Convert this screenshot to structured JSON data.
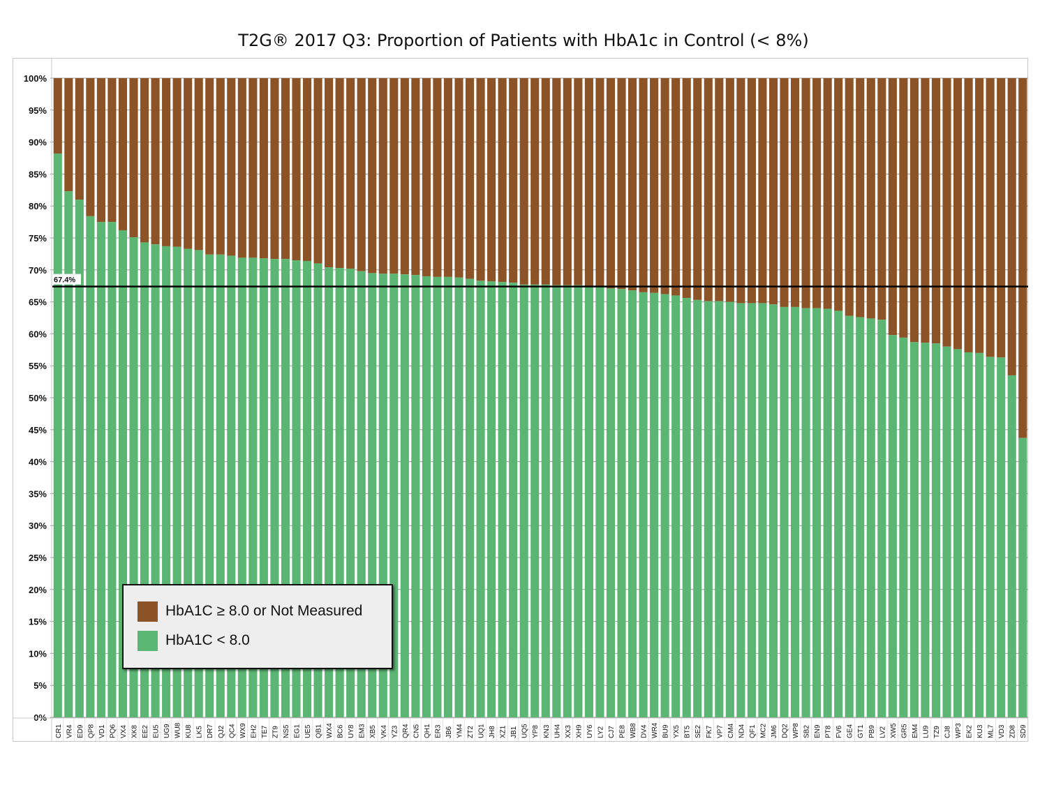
{
  "chart_data": {
    "type": "bar",
    "stacked": true,
    "title": "T2G® 2017 Q3: Proportion of Patients with HbA1c in Control (< 8%)",
    "xlabel": "",
    "ylabel": "",
    "ylim": [
      0,
      100
    ],
    "y_ticks": [
      "0%",
      "5%",
      "10%",
      "15%",
      "20%",
      "25%",
      "30%",
      "35%",
      "40%",
      "45%",
      "50%",
      "55%",
      "60%",
      "65%",
      "70%",
      "75%",
      "80%",
      "85%",
      "90%",
      "95%",
      "100%"
    ],
    "grid": true,
    "legend_position": "bottom-left",
    "categories": [
      "CR1",
      "VR4",
      "ED9",
      "QP8",
      "VD1",
      "PQ6",
      "VX4",
      "XK8",
      "EE2",
      "EU5",
      "UG9",
      "WU8",
      "KU8",
      "LK5",
      "DR7",
      "QJ2",
      "QC4",
      "WX9",
      "EH2",
      "TE7",
      "ZT9",
      "NS5",
      "EG1",
      "UE5",
      "QB1",
      "WX4",
      "BC6",
      "UY8",
      "EM3",
      "XB5",
      "VK4",
      "YZ3",
      "QR4",
      "CN5",
      "QH1",
      "ER3",
      "JB6",
      "YM4",
      "ZT2",
      "UQ1",
      "JH8",
      "XZ1",
      "JB1",
      "UQ5",
      "YP8",
      "KN3",
      "UH4",
      "XX3",
      "XH9",
      "UY6",
      "LY2",
      "CJ7",
      "PE8",
      "WB8",
      "DV4",
      "WR4",
      "BU9",
      "YX5",
      "BT5",
      "SE2",
      "FK7",
      "VP7",
      "CM4",
      "ND4",
      "QF1",
      "MC2",
      "JM6",
      "DQ2",
      "WP8",
      "SB2",
      "EN9",
      "PT8",
      "FV6",
      "GE4",
      "GT1",
      "PB9",
      "LV2",
      "XW5",
      "GR5",
      "EM4",
      "LU9",
      "TZ9",
      "CJ8",
      "WP3",
      "EK2",
      "KU3",
      "ML7",
      "VD3",
      "ZD8",
      "SD9"
    ],
    "series": [
      {
        "name": "HbA1C < 8.0",
        "color": "#5bb573",
        "values": [
          88.2,
          82.3,
          81.0,
          78.4,
          77.5,
          77.5,
          76.2,
          75.1,
          74.3,
          74.0,
          73.7,
          73.6,
          73.3,
          73.1,
          72.4,
          72.4,
          72.2,
          71.9,
          71.9,
          71.8,
          71.7,
          71.7,
          71.5,
          71.4,
          71.0,
          70.4,
          70.3,
          70.2,
          69.8,
          69.5,
          69.4,
          69.4,
          69.3,
          69.2,
          69.0,
          68.9,
          68.9,
          68.8,
          68.6,
          68.3,
          68.2,
          68.1,
          68.0,
          67.7,
          67.7,
          67.7,
          67.6,
          67.6,
          67.6,
          67.5,
          67.4,
          67.1,
          67.0,
          66.8,
          66.5,
          66.4,
          66.2,
          66.0,
          65.6,
          65.3,
          65.1,
          65.1,
          65.0,
          64.8,
          64.8,
          64.8,
          64.6,
          64.2,
          64.2,
          64.0,
          64.0,
          63.9,
          63.6,
          62.8,
          62.6,
          62.4,
          62.2,
          59.8,
          59.4,
          58.7,
          58.6,
          58.5,
          58.0,
          57.6,
          57.1,
          57.0,
          56.4,
          56.3,
          53.5,
          43.7
        ]
      },
      {
        "name": "HbA1C ≥ 8.0 or Not Measured",
        "color": "#8c5426",
        "values": "remainder to 100%"
      }
    ],
    "reference_line": {
      "value": 67.4,
      "label": "67.4%",
      "color": "#000000"
    }
  }
}
